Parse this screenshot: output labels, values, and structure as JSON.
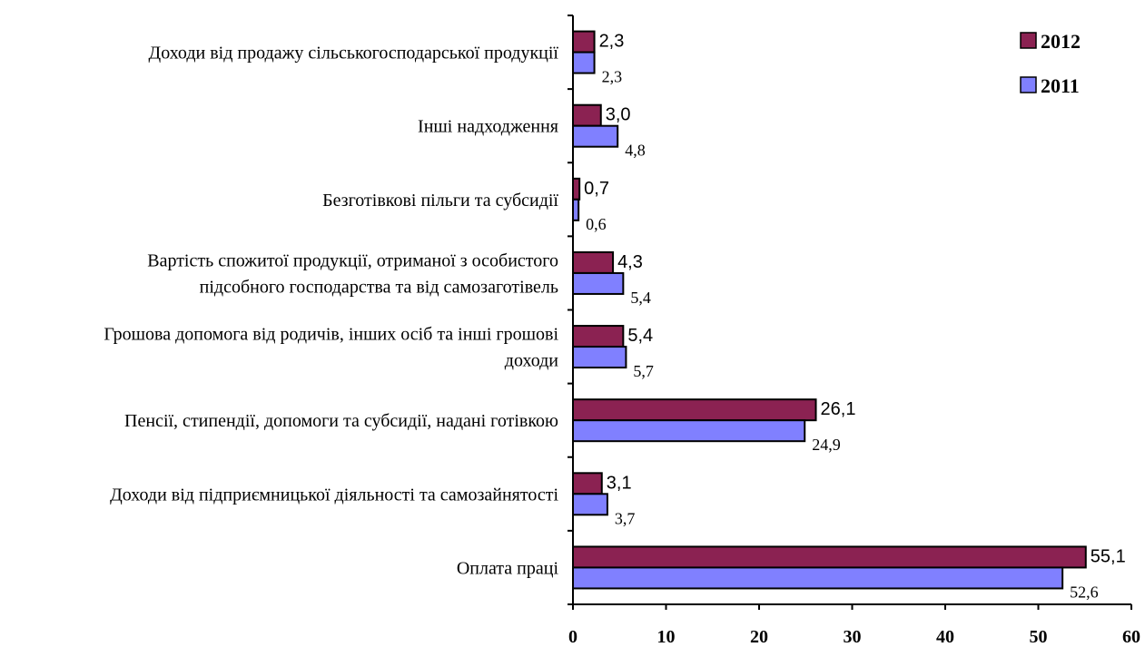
{
  "chart_data": {
    "type": "bar",
    "orientation": "horizontal",
    "categories": [
      [
        "Доходи від продажу сільськогосподарської продукції"
      ],
      [
        "Інші надходження"
      ],
      [
        "Безготівкові пільги та субсидії"
      ],
      [
        "Вартість спожитої продукції, отриманої з особистого",
        "підсобного господарства та від самозаготівель"
      ],
      [
        "Грошова допомога від родичів, інших осіб та інші грошові",
        "доходи"
      ],
      [
        "Пенсії, стипендії, допомоги та субсидії, надані готівкою"
      ],
      [
        "Доходи від підприємницької діяльності та самозайнятості"
      ],
      [
        "Оплата праці"
      ]
    ],
    "series": [
      {
        "name": "2012",
        "color": "#8b2252",
        "values": [
          2.3,
          3.0,
          0.7,
          4.3,
          5.4,
          26.1,
          3.1,
          55.1
        ],
        "labels": [
          "2,3",
          "3,0",
          "0,7",
          "4,3",
          "5,4",
          "26,1",
          "3,1",
          "55,1"
        ]
      },
      {
        "name": "2011",
        "color": "#8080ff",
        "values": [
          2.3,
          4.8,
          0.6,
          5.4,
          5.7,
          24.9,
          3.7,
          52.6
        ],
        "labels": [
          "2,3",
          "4,8",
          "0,6",
          "5,4",
          "5,7",
          "24,9",
          "3,7",
          "52,6"
        ]
      }
    ],
    "xlim": [
      0,
      60
    ],
    "xticks": [
      0,
      10,
      20,
      30,
      40,
      50,
      60
    ],
    "legend_position": "top-right",
    "grid": false
  }
}
